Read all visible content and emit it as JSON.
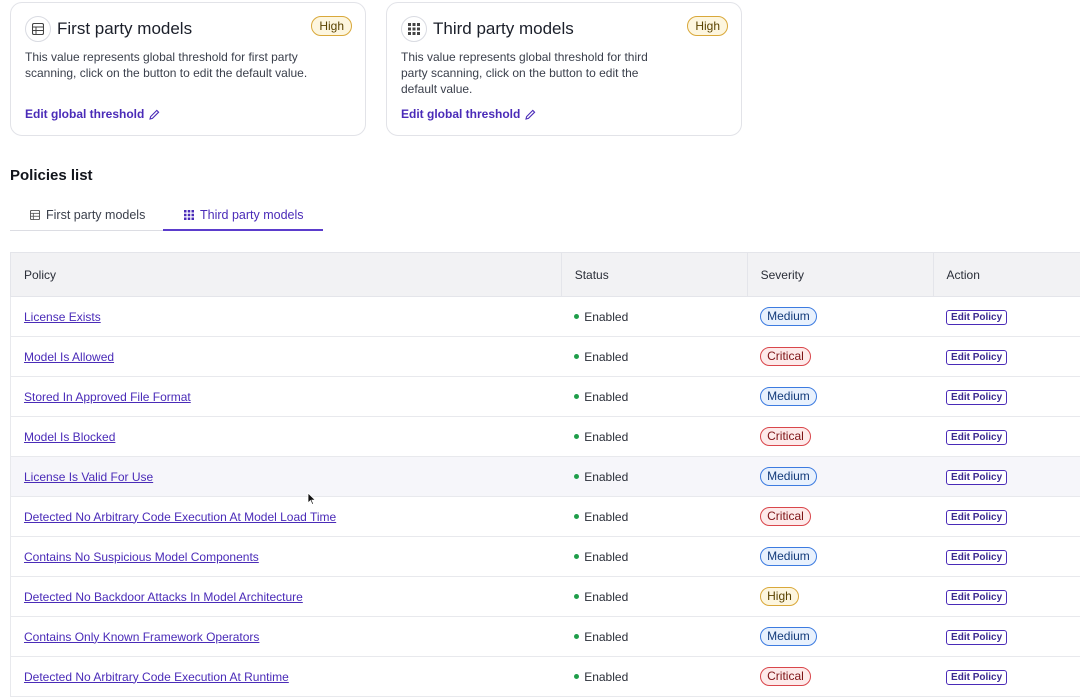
{
  "cards": [
    {
      "title": "First party models",
      "badge": "High",
      "description": "This value represents global threshold for first party scanning, click on the button to edit the default value.",
      "edit_label": "Edit global threshold"
    },
    {
      "title": "Third party models",
      "badge": "High",
      "description": "This value represents global threshold for third party scanning, click on the button to edit the default value.",
      "edit_label": "Edit global threshold"
    }
  ],
  "policies": {
    "title": "Policies list",
    "tabs": [
      {
        "label": "First party models",
        "icon": "table-icon",
        "active": false
      },
      {
        "label": "Third party models",
        "icon": "grid-icon",
        "active": true
      }
    ],
    "columns": [
      "Policy",
      "Status",
      "Severity",
      "Action"
    ],
    "rows": [
      {
        "policy": "License Exists",
        "status": "Enabled",
        "severity": "Medium",
        "action": "Edit Policy"
      },
      {
        "policy": "Model Is Allowed",
        "status": "Enabled",
        "severity": "Critical",
        "action": "Edit Policy"
      },
      {
        "policy": "Stored In Approved File Format",
        "status": "Enabled",
        "severity": "Medium",
        "action": "Edit Policy"
      },
      {
        "policy": "Model Is Blocked",
        "status": "Enabled",
        "severity": "Critical",
        "action": "Edit Policy"
      },
      {
        "policy": "License Is Valid For Use",
        "status": "Enabled",
        "severity": "Medium",
        "action": "Edit Policy"
      },
      {
        "policy": "Detected No Arbitrary Code Execution At Model Load Time",
        "status": "Enabled",
        "severity": "Critical",
        "action": "Edit Policy"
      },
      {
        "policy": "Contains No Suspicious Model Components",
        "status": "Enabled",
        "severity": "Medium",
        "action": "Edit Policy"
      },
      {
        "policy": "Detected No Backdoor Attacks In Model Architecture",
        "status": "Enabled",
        "severity": "High",
        "action": "Edit Policy"
      },
      {
        "policy": "Contains Only Known Framework Operators",
        "status": "Enabled",
        "severity": "Medium",
        "action": "Edit Policy"
      },
      {
        "policy": "Detected No Arbitrary Code Execution At Runtime",
        "status": "Enabled",
        "severity": "Critical",
        "action": "Edit Policy"
      }
    ]
  },
  "colors": {
    "accent": "#4a2bb8",
    "status_enabled": "#1e9e4a",
    "medium": "#3c7be0",
    "critical": "#d9464b",
    "high": "#d9a83a"
  }
}
